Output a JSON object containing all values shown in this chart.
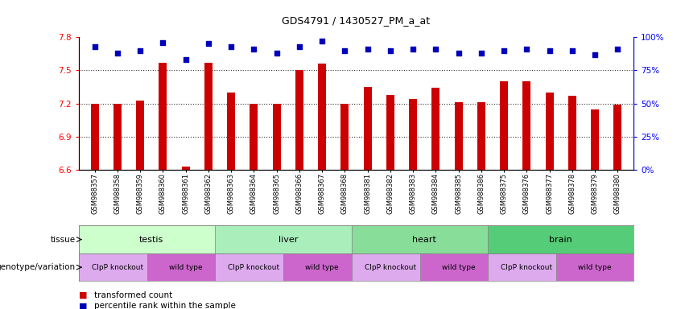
{
  "title": "GDS4791 / 1430527_PM_a_at",
  "samples": [
    "GSM988357",
    "GSM988358",
    "GSM988359",
    "GSM988360",
    "GSM988361",
    "GSM988362",
    "GSM988363",
    "GSM988364",
    "GSM988365",
    "GSM988366",
    "GSM988367",
    "GSM988368",
    "GSM988381",
    "GSM988382",
    "GSM988383",
    "GSM988384",
    "GSM988385",
    "GSM988386",
    "GSM988375",
    "GSM988376",
    "GSM988377",
    "GSM988378",
    "GSM988379",
    "GSM988380"
  ],
  "bar_values": [
    7.2,
    7.2,
    7.23,
    7.57,
    6.63,
    7.57,
    7.3,
    7.2,
    7.2,
    7.5,
    7.56,
    7.2,
    7.35,
    7.28,
    7.24,
    7.34,
    7.21,
    7.21,
    7.4,
    7.4,
    7.3,
    7.27,
    7.15,
    7.19
  ],
  "percentile_values": [
    93,
    88,
    90,
    96,
    83,
    95,
    93,
    91,
    88,
    93,
    97,
    90,
    91,
    90,
    91,
    91,
    88,
    88,
    90,
    91,
    90,
    90,
    87,
    91
  ],
  "ylim_left": [
    6.6,
    7.8
  ],
  "yticks_left": [
    6.6,
    6.9,
    7.2,
    7.5,
    7.8
  ],
  "yticks_right": [
    0,
    25,
    50,
    75,
    100
  ],
  "dotted_lines": [
    6.9,
    7.2,
    7.5
  ],
  "bar_color": "#cc0000",
  "dot_color": "#0000bb",
  "tissue_colors": {
    "testis": "#ccffcc",
    "liver": "#aaeebb",
    "heart": "#88dd99",
    "brain": "#55cc77"
  },
  "tissues_data": [
    {
      "label": "testis",
      "start": 0,
      "end": 6
    },
    {
      "label": "liver",
      "start": 6,
      "end": 12
    },
    {
      "label": "heart",
      "start": 12,
      "end": 18
    },
    {
      "label": "brain",
      "start": 18,
      "end": 24
    }
  ],
  "geno_colors": {
    "ClpP knockout": "#ddaaee",
    "wild type": "#cc66cc"
  },
  "geno_data": [
    {
      "label": "ClpP knockout",
      "start": 0,
      "end": 3
    },
    {
      "label": "wild type",
      "start": 3,
      "end": 6
    },
    {
      "label": "ClpP knockout",
      "start": 6,
      "end": 9
    },
    {
      "label": "wild type",
      "start": 9,
      "end": 12
    },
    {
      "label": "ClpP knockout",
      "start": 12,
      "end": 15
    },
    {
      "label": "wild type",
      "start": 15,
      "end": 18
    },
    {
      "label": "ClpP knockout",
      "start": 18,
      "end": 21
    },
    {
      "label": "wild type",
      "start": 21,
      "end": 24
    }
  ]
}
